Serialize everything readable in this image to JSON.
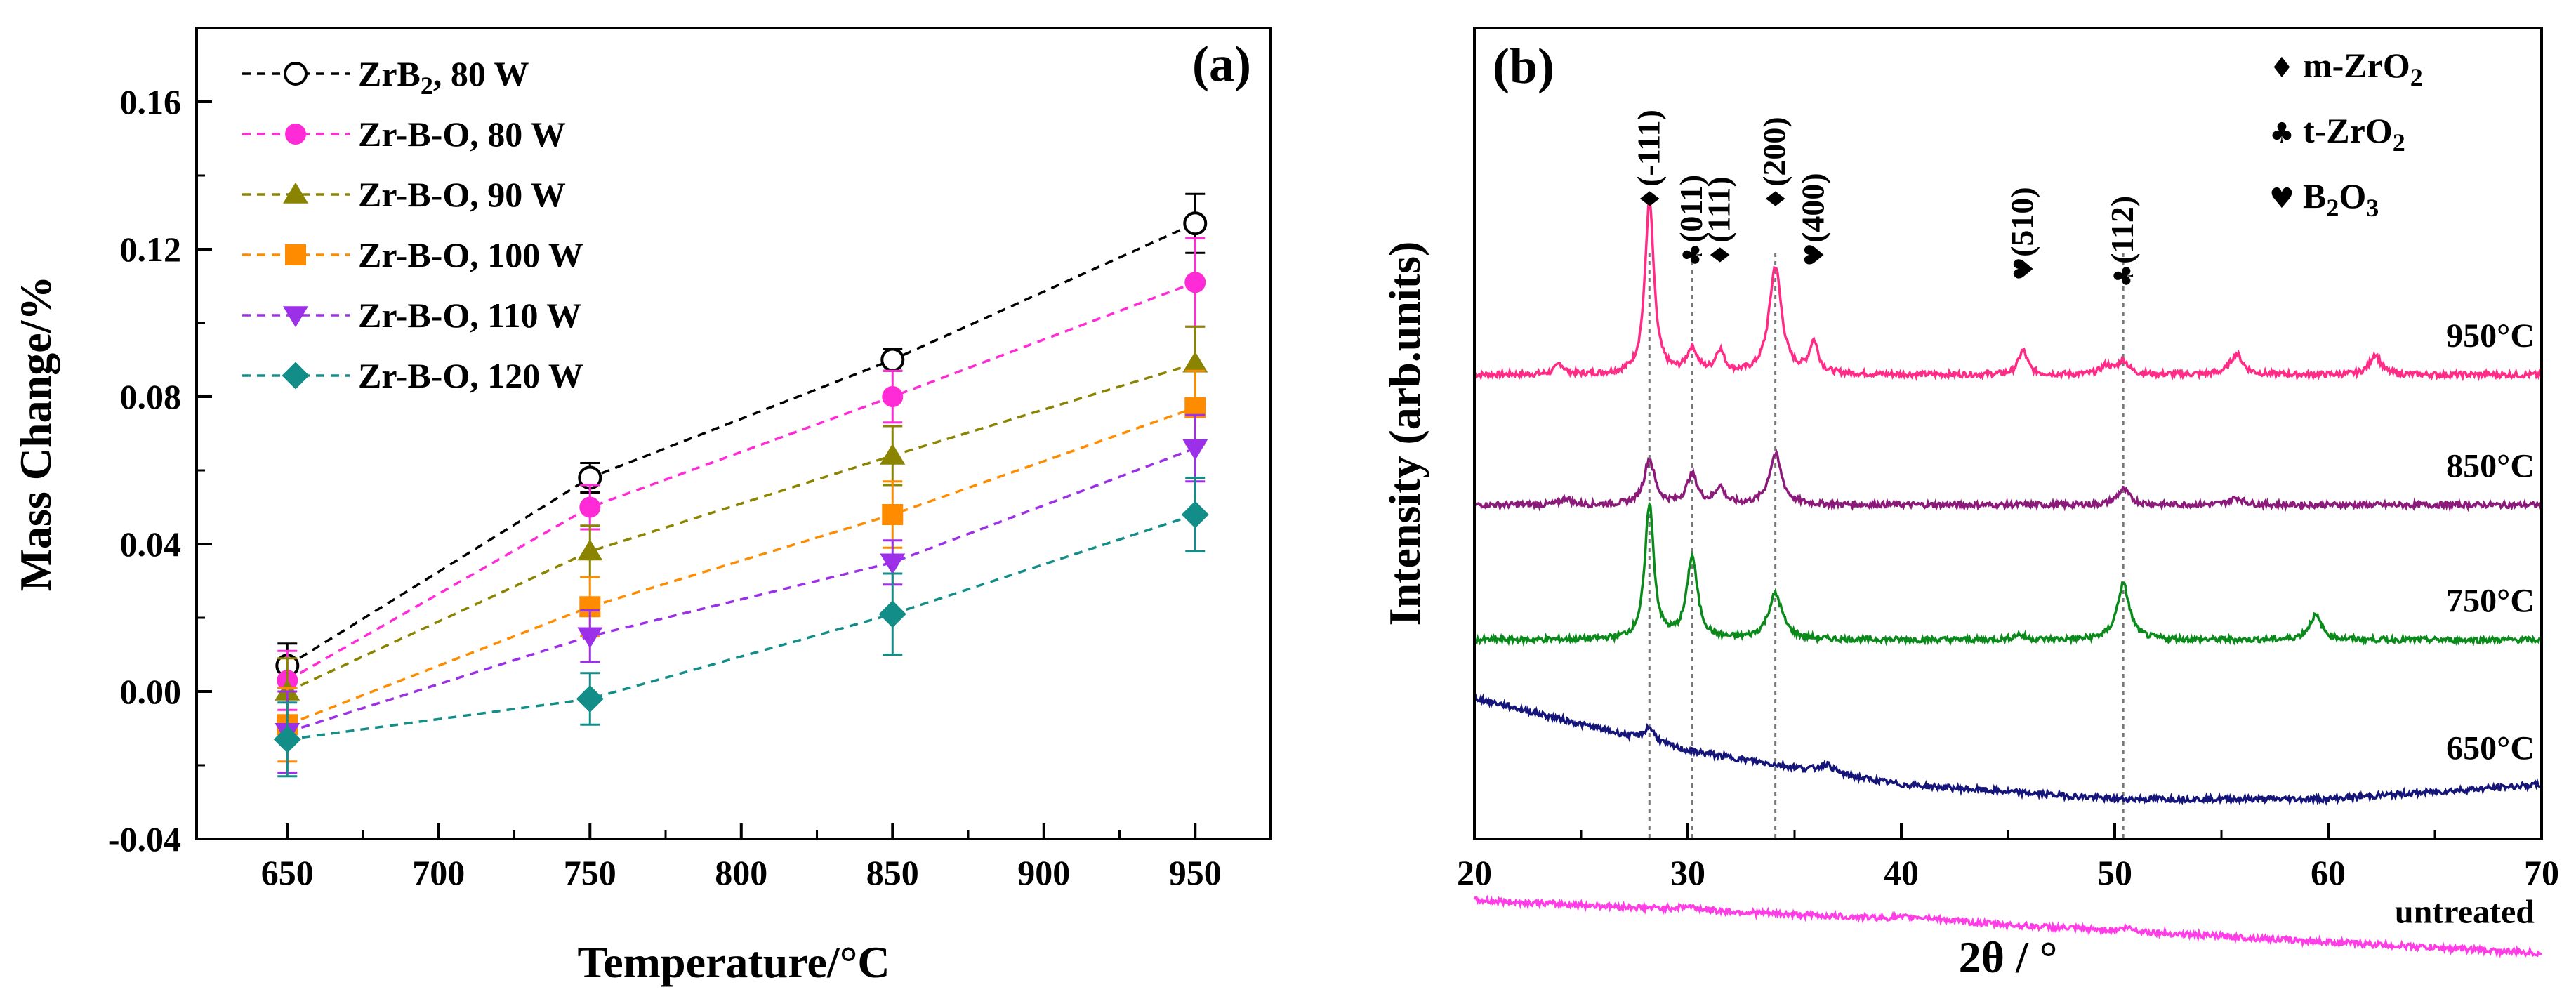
{
  "chart_data": [
    {
      "type": "line",
      "panel_label": "(a)",
      "xlabel": "Temperature/°C",
      "ylabel": "Mass Change/%",
      "xlim": [
        620,
        975
      ],
      "ylim": [
        -0.04,
        0.18
      ],
      "xticks": [
        650,
        700,
        750,
        800,
        850,
        900,
        950
      ],
      "xtick_labels": [
        "650",
        "700",
        "750",
        "800",
        "850",
        "900",
        "950"
      ],
      "yticks": [
        -0.04,
        0.0,
        0.04,
        0.08,
        0.12,
        0.16
      ],
      "ytick_labels": [
        "-0.04",
        "0.00",
        "0.04",
        "0.08",
        "0.12",
        "0.16"
      ],
      "legend_position": "top-left",
      "x": [
        650,
        750,
        850,
        950
      ],
      "series": [
        {
          "name": "ZrB2, 80 W",
          "legend_main": "ZrB",
          "legend_sub": "2",
          "legend_rest": ", 80 W",
          "marker": "open-circle",
          "color": "#000000",
          "values": [
            0.007,
            0.058,
            0.09,
            0.127
          ],
          "errors": [
            0.006,
            0.004,
            0.003,
            0.008
          ]
        },
        {
          "name": "Zr-B-O, 80 W",
          "legend_main": "Zr-B-O, 80 W",
          "legend_sub": "",
          "legend_rest": "",
          "marker": "circle",
          "color": "#ff2bd6",
          "values": [
            0.003,
            0.05,
            0.08,
            0.111
          ],
          "errors": [
            0.008,
            0.006,
            0.007,
            0.012
          ]
        },
        {
          "name": "Zr-B-O, 90 W",
          "legend_main": "Zr-B-O, 90 W",
          "legend_sub": "",
          "legend_rest": "",
          "marker": "triangle-up",
          "color": "#8a8400",
          "values": [
            0.0,
            0.038,
            0.064,
            0.089
          ],
          "errors": [
            0.009,
            0.007,
            0.008,
            0.01
          ]
        },
        {
          "name": "Zr-B-O, 100 W",
          "legend_main": "Zr-B-O, 100 W",
          "legend_sub": "",
          "legend_rest": "",
          "marker": "square",
          "color": "#ff8c00",
          "values": [
            -0.009,
            0.023,
            0.048,
            0.077
          ],
          "errors": [
            0.01,
            0.008,
            0.009,
            0.01
          ]
        },
        {
          "name": "Zr-B-O, 110 W",
          "legend_main": "Zr-B-O, 110 W",
          "legend_sub": "",
          "legend_rest": "",
          "marker": "triangle-down",
          "color": "#9b30e8",
          "values": [
            -0.011,
            0.015,
            0.035,
            0.066
          ],
          "errors": [
            0.011,
            0.007,
            0.006,
            0.009
          ]
        },
        {
          "name": "Zr-B-O, 120 W",
          "legend_main": "Zr-B-O, 120 W",
          "legend_sub": "",
          "legend_rest": "",
          "marker": "diamond",
          "color": "#138d88",
          "values": [
            -0.013,
            -0.002,
            0.021,
            0.048
          ],
          "errors": [
            0.01,
            0.007,
            0.011,
            0.01
          ]
        }
      ]
    },
    {
      "type": "line",
      "panel_label": "(b)",
      "xlabel": "2θ / °",
      "ylabel": "Intensity (arb.units)",
      "xlim": [
        20,
        70
      ],
      "xticks": [
        20,
        30,
        40,
        50,
        60,
        70
      ],
      "xtick_labels": [
        "20",
        "30",
        "40",
        "50",
        "60",
        "70"
      ],
      "y_units": "arbitrary (stacked patterns)",
      "legend_position": "top-right",
      "legend": [
        {
          "symbol": "♦",
          "text_main": "m-ZrO",
          "text_sub": "2"
        },
        {
          "symbol": "♣",
          "text_main": "t-ZrO",
          "text_sub": "2"
        },
        {
          "symbol": "♥",
          "text_main": "B",
          "text_sub": "2",
          "text_rest": "O",
          "text_sub2": "3"
        }
      ],
      "reference_lines": [
        28.2,
        30.2,
        34.1,
        50.4
      ],
      "peak_labels": [
        {
          "symbol": "♦",
          "text": "(-111)",
          "x": 28.2
        },
        {
          "symbol": "♣",
          "text": "(011)",
          "x": 30.2
        },
        {
          "symbol": "♦",
          "text": "(111)",
          "x": 31.5
        },
        {
          "symbol": "♦",
          "text": "(200)",
          "x": 34.1
        },
        {
          "symbol": "♥",
          "text": "(400)",
          "x": 35.9
        },
        {
          "symbol": "♥",
          "text": "(510)",
          "x": 45.7
        },
        {
          "symbol": "♣",
          "text": "(112)",
          "x": 50.4
        }
      ],
      "series": [
        {
          "name": "950°C",
          "color": "#ff2b86",
          "baseline": 0.89,
          "slope": 0.0005,
          "peaks": [
            [
              24.0,
              0.06,
              0.25
            ],
            [
              28.2,
              1.0,
              0.25
            ],
            [
              30.2,
              0.14,
              0.3
            ],
            [
              31.5,
              0.13,
              0.25
            ],
            [
              34.1,
              0.62,
              0.35
            ],
            [
              35.9,
              0.18,
              0.25
            ],
            [
              45.7,
              0.14,
              0.25
            ],
            [
              49.6,
              0.05,
              0.3
            ],
            [
              50.4,
              0.08,
              0.3
            ],
            [
              55.7,
              0.12,
              0.35
            ],
            [
              62.2,
              0.12,
              0.3
            ]
          ]
        },
        {
          "name": "850°C",
          "color": "#8b1a7a",
          "baseline": 0.62,
          "slope": 0.0016,
          "peaks": [
            [
              24.3,
              0.04,
              0.25
            ],
            [
              28.2,
              0.26,
              0.3
            ],
            [
              30.2,
              0.17,
              0.3
            ],
            [
              31.5,
              0.1,
              0.25
            ],
            [
              34.1,
              0.29,
              0.35
            ],
            [
              50.4,
              0.09,
              0.35
            ],
            [
              55.7,
              0.04,
              0.4
            ]
          ]
        },
        {
          "name": "750°C",
          "color": "#0a8a1a",
          "baseline": 0.34,
          "slope": 0.0014,
          "peaks": [
            [
              28.2,
              0.78,
              0.25
            ],
            [
              30.2,
              0.47,
              0.3
            ],
            [
              34.1,
              0.26,
              0.4
            ],
            [
              45.5,
              0.03,
              0.3
            ],
            [
              50.4,
              0.32,
              0.35
            ],
            [
              59.4,
              0.14,
              0.35
            ]
          ]
        },
        {
          "name": "650°C",
          "color": "#15157a",
          "baseline": 0.04,
          "slope": 0.001,
          "trend": [
            [
              20,
              0.18
            ],
            [
              30,
              0.07
            ],
            [
              40,
              0.0
            ],
            [
              50,
              -0.03
            ],
            [
              60,
              -0.03
            ],
            [
              70,
              0.0
            ]
          ],
          "peaks": [
            [
              28.2,
              0.08,
              0.3
            ],
            [
              36.5,
              0.05,
              0.4
            ]
          ]
        },
        {
          "name": "untreated",
          "color": "#ff3de6",
          "baseline": -0.26,
          "slope": 0.001,
          "trend": [
            [
              20,
              0.06
            ],
            [
              40,
              0.02
            ],
            [
              70,
              -0.05
            ]
          ],
          "peaks": [
            [
              30.0,
              0.02,
              0.6
            ],
            [
              41.0,
              0.02,
              1.2
            ],
            [
              50.6,
              0.02,
              0.4
            ]
          ]
        }
      ]
    }
  ]
}
